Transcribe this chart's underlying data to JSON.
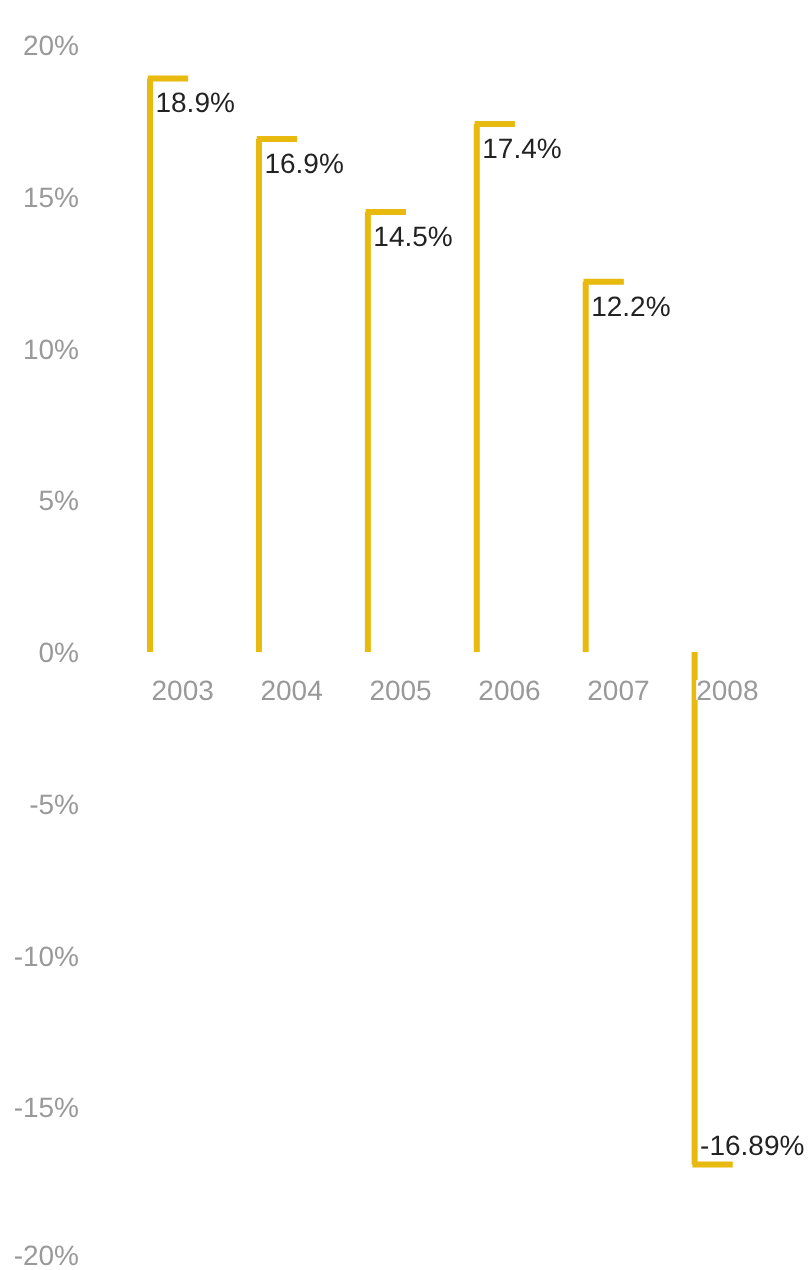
{
  "chart_data": {
    "type": "bar",
    "categories": [
      "2003",
      "2004",
      "2005",
      "2006",
      "2007",
      "2008"
    ],
    "values": [
      18.9,
      16.9,
      14.5,
      17.4,
      12.2,
      -16.89
    ],
    "value_labels": [
      "18.9%",
      "16.9%",
      "14.5%",
      "17.4%",
      "12.2%",
      "-16.89%"
    ],
    "color": "#e8b90e",
    "ylim": [
      -20,
      20
    ],
    "yticks": [
      {
        "value": -20,
        "label": "-20%"
      },
      {
        "value": -15,
        "label": "-15%"
      },
      {
        "value": -10,
        "label": "-10%"
      },
      {
        "value": -5,
        "label": "-5%"
      },
      {
        "value": 0,
        "label": "0%"
      },
      {
        "value": 5,
        "label": "5%"
      },
      {
        "value": 10,
        "label": "10%"
      },
      {
        "value": 15,
        "label": "15%"
      },
      {
        "value": 20,
        "label": "20%"
      }
    ],
    "grid": false
  }
}
